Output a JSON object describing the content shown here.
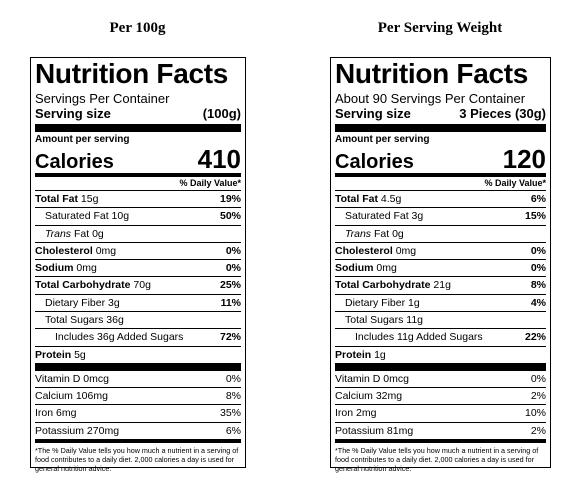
{
  "captions": {
    "left": "Per 100g",
    "right": "Per Serving Weight"
  },
  "labels": [
    {
      "title": "Nutrition Facts",
      "servings": "Servings Per Container",
      "serving_size_label": "Serving size",
      "serving_size_value": "(100g)",
      "amount_per_serving": "Amount per serving",
      "calories_label": "Calories",
      "calories_value": "410",
      "dv_header": "% Daily Value*",
      "total_fat": {
        "label": "Total Fat",
        "amount": "15g",
        "dv": "19%"
      },
      "saturated_fat": {
        "label": "Saturated Fat 10g",
        "dv": "50%"
      },
      "trans_fat": {
        "label_italic": "Trans",
        "label_rest": " Fat 0g"
      },
      "cholesterol": {
        "label": "Cholesterol",
        "amount": "0mg",
        "dv": "0%"
      },
      "sodium": {
        "label": "Sodium",
        "amount": "0mg",
        "dv": "0%"
      },
      "total_carb": {
        "label": "Total Carbohydrate",
        "amount": "70g",
        "dv": "25%"
      },
      "fiber": {
        "label": "Dietary Fiber 3g",
        "dv": "11%"
      },
      "total_sugars": {
        "label": "Total Sugars 36g"
      },
      "added_sugars": {
        "label": "Includes 36g Added Sugars",
        "dv": "72%"
      },
      "protein": {
        "label": "Protein",
        "amount": "5g"
      },
      "vitamin_d": {
        "label": "Vitamin D 0mcg",
        "dv": "0%"
      },
      "calcium": {
        "label": "Calcium 106mg",
        "dv": "8%"
      },
      "iron": {
        "label": "Iron 6mg",
        "dv": "35%"
      },
      "potassium": {
        "label": "Potassium 270mg",
        "dv": "6%"
      },
      "footnote": "*The % Daily Value tells you how much a nutrient in a serving of food contributes to a daily diet. 2,000 calories a day is used for general nutrition advice."
    },
    {
      "title": "Nutrition Facts",
      "servings": "About 90 Servings Per Container",
      "serving_size_label": "Serving size",
      "serving_size_value": "3 Pieces (30g)",
      "amount_per_serving": "Amount per serving",
      "calories_label": "Calories",
      "calories_value": "120",
      "dv_header": "% Daily Value*",
      "total_fat": {
        "label": "Total Fat",
        "amount": "4.5g",
        "dv": "6%"
      },
      "saturated_fat": {
        "label": "Saturated Fat 3g",
        "dv": "15%"
      },
      "trans_fat": {
        "label_italic": "Trans",
        "label_rest": " Fat 0g"
      },
      "cholesterol": {
        "label": "Cholesterol",
        "amount": "0mg",
        "dv": "0%"
      },
      "sodium": {
        "label": "Sodium",
        "amount": "0mg",
        "dv": "0%"
      },
      "total_carb": {
        "label": "Total Carbohydrate",
        "amount": "21g",
        "dv": "8%"
      },
      "fiber": {
        "label": "Dietary Fiber 1g",
        "dv": "4%"
      },
      "total_sugars": {
        "label": "Total Sugars 11g"
      },
      "added_sugars": {
        "label": "Includes 11g Added Sugars",
        "dv": "22%"
      },
      "protein": {
        "label": "Protein",
        "amount": "1g"
      },
      "vitamin_d": {
        "label": "Vitamin D 0mcg",
        "dv": "0%"
      },
      "calcium": {
        "label": "Calcium 32mg",
        "dv": "2%"
      },
      "iron": {
        "label": "Iron 2mg",
        "dv": "10%"
      },
      "potassium": {
        "label": "Potassium 81mg",
        "dv": "2%"
      },
      "footnote": "*The % Daily Value tells you how much a nutrient in a serving of food contributes to a daily diet. 2,000 calories a day is used for general nutrition advice."
    }
  ]
}
